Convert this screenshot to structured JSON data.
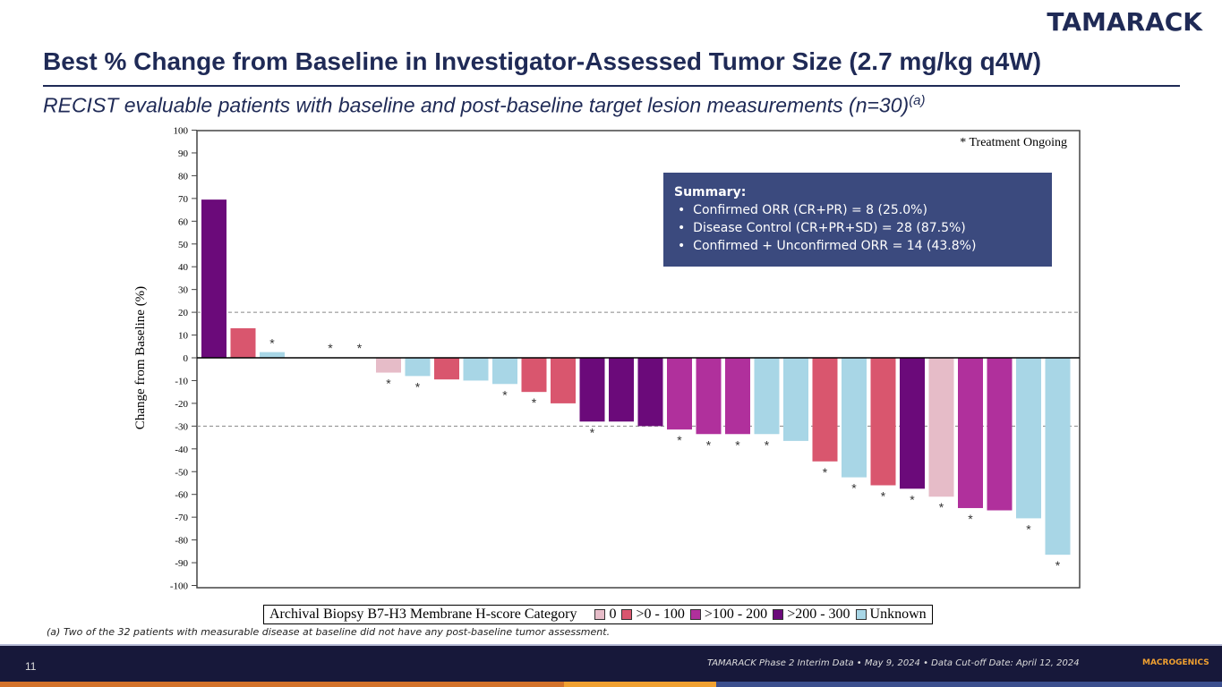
{
  "header": {
    "logo": "TAMARACK",
    "title": "Best % Change from Baseline in Investigator-Assessed Tumor Size (2.7 mg/kg q4W)",
    "subtitle": "RECIST evaluable patients with baseline and post-baseline target lesion measurements (n=30)",
    "subtitle_sup": "(a)"
  },
  "summary": {
    "heading": "Summary:",
    "items": [
      "Confirmed ORR (CR+PR) = 8 (25.0%)",
      "Disease Control (CR+PR+SD) = 28 (87.5%)",
      "Confirmed + Unconfirmed ORR = 14 (43.8%)"
    ]
  },
  "footnote": "(a) Two of the 32 patients with measurable disease at baseline did not have any post-baseline tumor assessment.",
  "footer": {
    "page": "11",
    "text": "TAMARACK Phase 2 Interim Data • May 9, 2024 • Data Cut-off Date: April 12, 2024",
    "logo": "MACROGENICS"
  },
  "chart_data": {
    "type": "bar",
    "ylabel": "Change from Baseline (%)",
    "ylim": [
      -100,
      100
    ],
    "yticks": [
      100,
      90,
      80,
      70,
      60,
      50,
      40,
      30,
      20,
      10,
      0,
      -10,
      -20,
      -30,
      -40,
      -50,
      -60,
      -70,
      -80,
      -90,
      -100
    ],
    "reference_lines": [
      20,
      -30
    ],
    "annotation": "* Treatment Ongoing",
    "legend": {
      "title": "Archival Biopsy B7-H3 Membrane H-score Category",
      "placement": "bottom",
      "entries": [
        {
          "label": "0",
          "color": "#e6bcc8"
        },
        {
          "label": ">0 - 100",
          "color": "#d9566e"
        },
        {
          "label": ">100 - 200",
          "color": "#b0309c"
        },
        {
          "label": ">200 - 300",
          "color": "#6b0a7a"
        },
        {
          "label": "Unknown",
          "color": "#a8d6e6"
        }
      ]
    },
    "bars": [
      {
        "value": 69.5,
        "category": ">200 - 300",
        "ongoing": false
      },
      {
        "value": 13,
        "category": ">0 - 100",
        "ongoing": false
      },
      {
        "value": 2.5,
        "category": "Unknown",
        "ongoing": true
      },
      {
        "value": 0,
        "category": "Unknown",
        "ongoing": false
      },
      {
        "value": 0,
        "category": "Unknown",
        "ongoing": true
      },
      {
        "value": 0,
        "category": "Unknown",
        "ongoing": true
      },
      {
        "value": -6.5,
        "category": "0",
        "ongoing": true
      },
      {
        "value": -8,
        "category": "Unknown",
        "ongoing": true
      },
      {
        "value": -9.5,
        "category": ">0 - 100",
        "ongoing": false
      },
      {
        "value": -10,
        "category": "Unknown",
        "ongoing": false
      },
      {
        "value": -11.5,
        "category": "Unknown",
        "ongoing": true
      },
      {
        "value": -15,
        "category": ">0 - 100",
        "ongoing": true
      },
      {
        "value": -20,
        "category": ">0 - 100",
        "ongoing": false
      },
      {
        "value": -28,
        "category": ">200 - 300",
        "ongoing": true
      },
      {
        "value": -28,
        "category": ">200 - 300",
        "ongoing": false
      },
      {
        "value": -30,
        "category": ">200 - 300",
        "ongoing": false
      },
      {
        "value": -31.5,
        "category": ">100 - 200",
        "ongoing": true
      },
      {
        "value": -33.5,
        "category": ">100 - 200",
        "ongoing": true
      },
      {
        "value": -33.5,
        "category": ">100 - 200",
        "ongoing": true
      },
      {
        "value": -33.5,
        "category": "Unknown",
        "ongoing": true
      },
      {
        "value": -36.5,
        "category": "Unknown",
        "ongoing": false
      },
      {
        "value": -45.5,
        "category": ">0 - 100",
        "ongoing": true
      },
      {
        "value": -52.5,
        "category": "Unknown",
        "ongoing": true
      },
      {
        "value": -56,
        "category": ">0 - 100",
        "ongoing": true
      },
      {
        "value": -57.5,
        "category": ">200 - 300",
        "ongoing": true
      },
      {
        "value": -61,
        "category": "0",
        "ongoing": true
      },
      {
        "value": -66,
        "category": ">100 - 200",
        "ongoing": true
      },
      {
        "value": -67,
        "category": ">100 - 200",
        "ongoing": false
      },
      {
        "value": -70.5,
        "category": "Unknown",
        "ongoing": true
      },
      {
        "value": -86.5,
        "category": "Unknown",
        "ongoing": true
      }
    ]
  }
}
